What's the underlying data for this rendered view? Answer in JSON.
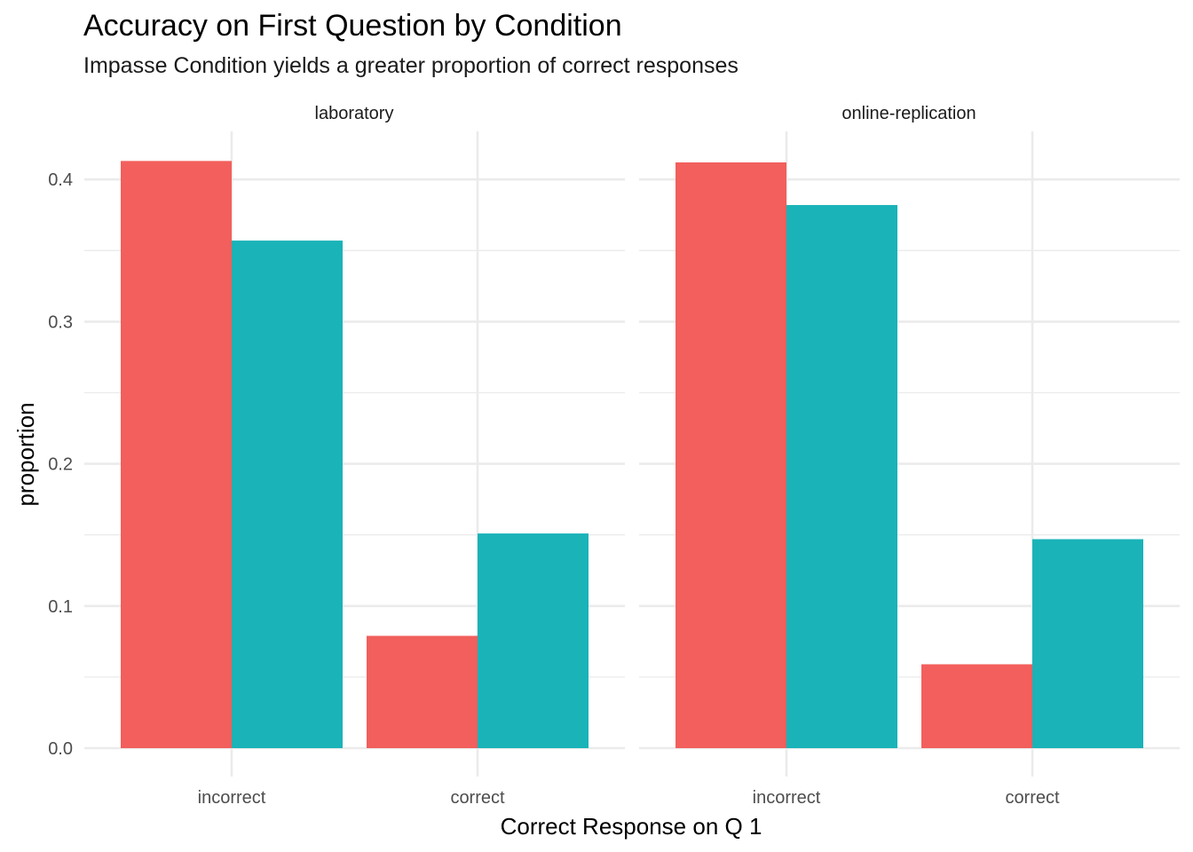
{
  "chart_data": {
    "type": "bar",
    "title": "Accuracy on First Question by Condition",
    "subtitle": "Impasse Condition yields a greater proportion of correct responses",
    "xlabel": "Correct Response on Q 1",
    "ylabel": "proportion",
    "ylim": [
      0,
      0.43
    ],
    "y_ticks": [
      "0.0",
      "0.1",
      "0.2",
      "0.3",
      "0.4"
    ],
    "y_tick_values": [
      0,
      0.1,
      0.2,
      0.3,
      0.4
    ],
    "categories": [
      "incorrect",
      "correct"
    ],
    "grid": true,
    "legend": "none",
    "series_colors": [
      "#F25F5C",
      "#1AB3B8"
    ],
    "facets": [
      {
        "label": "laboratory",
        "series": [
          {
            "values": [
              0.413,
              0.079
            ]
          },
          {
            "values": [
              0.357,
              0.151
            ]
          }
        ]
      },
      {
        "label": "online-replication",
        "series": [
          {
            "values": [
              0.412,
              0.059
            ]
          },
          {
            "values": [
              0.382,
              0.147
            ]
          }
        ]
      }
    ]
  }
}
